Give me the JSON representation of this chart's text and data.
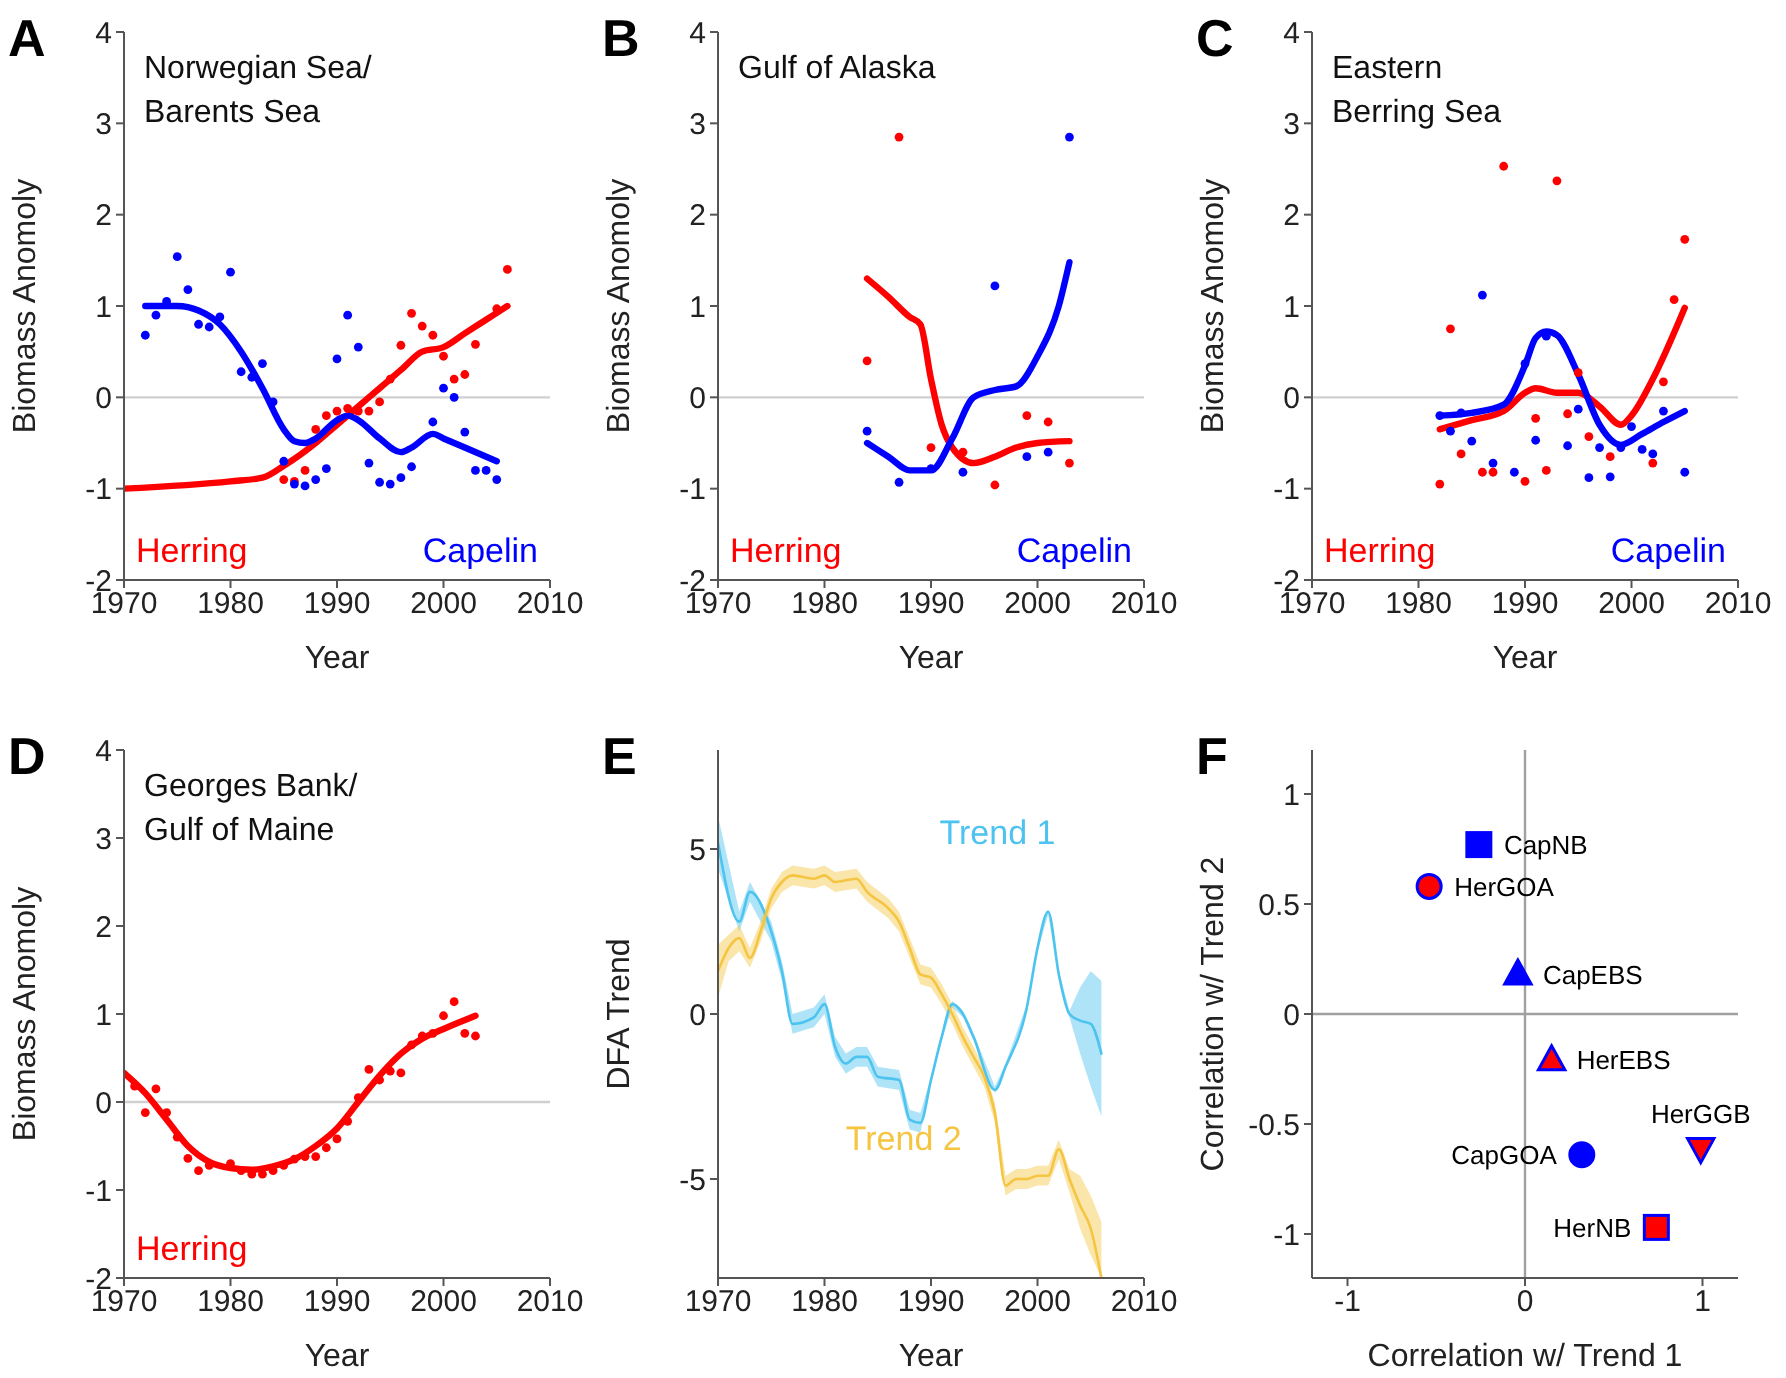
{
  "chart_data": [
    {
      "type": "line",
      "title": "A",
      "subtitle": "Norwegian Sea/\nBarents Sea",
      "xlabel": "Year",
      "ylabel": "Biomass Anomoly",
      "xlim": [
        1970,
        2010
      ],
      "xticks": [
        1970,
        1980,
        1990,
        2000,
        2010
      ],
      "ylim": [
        -2,
        4
      ],
      "yticks": [
        -2,
        -1,
        0,
        1,
        2,
        3,
        4
      ],
      "ref_lines": [
        {
          "axis": "y",
          "value": 0,
          "color": "#d0d0d0"
        }
      ],
      "series": [
        {
          "type": "scatter",
          "marker": "circle",
          "color": "#ff0000",
          "x": [
            1985,
            1986,
            1987,
            1988,
            1989,
            1990,
            1991,
            1992,
            1993,
            1994,
            1995,
            1996,
            1997,
            1998,
            1999,
            2000,
            2001,
            2002,
            2003,
            2005,
            2006
          ],
          "values": [
            -0.9,
            -0.92,
            -0.8,
            -0.35,
            -0.2,
            -0.15,
            -0.12,
            -0.15,
            -0.15,
            -0.05,
            0.2,
            0.57,
            0.92,
            0.78,
            0.68,
            0.45,
            0.2,
            0.25,
            0.58,
            0.97,
            1.4
          ]
        },
        {
          "type": "line",
          "name": "Herring",
          "color": "#ff0000",
          "x": [
            1970,
            1980,
            1983,
            1985,
            1988,
            1990,
            1992,
            1994,
            1996,
            1998,
            2000,
            2002,
            2004,
            2006
          ],
          "values": [
            -1.0,
            -0.92,
            -0.88,
            -0.75,
            -0.5,
            -0.3,
            -0.1,
            0.1,
            0.3,
            0.5,
            0.55,
            0.7,
            0.85,
            1.0
          ]
        },
        {
          "type": "scatter",
          "marker": "circle",
          "color": "#0000ff",
          "x": [
            1972,
            1973,
            1974,
            1975,
            1976,
            1977,
            1978,
            1979,
            1980,
            1981,
            1982,
            1983,
            1984,
            1985,
            1986,
            1987,
            1988,
            1989,
            1990,
            1991,
            1992,
            1993,
            1994,
            1995,
            1996,
            1997,
            1999,
            2000,
            2001,
            2002,
            2003,
            2004,
            2005
          ],
          "values": [
            0.68,
            0.9,
            1.05,
            1.54,
            1.18,
            0.8,
            0.77,
            0.88,
            1.37,
            0.28,
            0.22,
            0.37,
            -0.05,
            -0.7,
            -0.95,
            -0.97,
            -0.9,
            -0.78,
            0.42,
            0.9,
            0.55,
            -0.72,
            -0.93,
            -0.95,
            -0.88,
            -0.76,
            -0.27,
            0.1,
            0,
            -0.38,
            -0.8,
            -0.8,
            -0.9
          ]
        },
        {
          "type": "line",
          "name": "Capelin",
          "color": "#0000ff",
          "x": [
            1972,
            1975,
            1977,
            1979,
            1981,
            1983,
            1985,
            1986,
            1987,
            1988,
            1990,
            1991,
            1992,
            1994,
            1996,
            1997,
            1999,
            2000,
            2002,
            2005
          ],
          "values": [
            1.0,
            1.0,
            0.95,
            0.8,
            0.5,
            0.1,
            -0.35,
            -0.48,
            -0.5,
            -0.45,
            -0.25,
            -0.2,
            -0.25,
            -0.45,
            -0.6,
            -0.55,
            -0.4,
            -0.45,
            -0.55,
            -0.7
          ]
        }
      ]
    },
    {
      "type": "line",
      "title": "B",
      "subtitle": "Gulf of Alaska",
      "xlabel": "Year",
      "ylabel": "Biomass Anomoly",
      "xlim": [
        1970,
        2010
      ],
      "xticks": [
        1970,
        1980,
        1990,
        2000,
        2010
      ],
      "ylim": [
        -2,
        4
      ],
      "yticks": [
        -2,
        -1,
        0,
        1,
        2,
        3,
        4
      ],
      "ref_lines": [
        {
          "axis": "y",
          "value": 0,
          "color": "#d0d0d0"
        }
      ],
      "series": [
        {
          "type": "scatter",
          "marker": "circle",
          "color": "#ff0000",
          "x": [
            1984,
            1987,
            1990,
            1993,
            1996,
            1999,
            2001,
            2003
          ],
          "values": [
            0.4,
            2.85,
            -0.55,
            -0.6,
            -0.96,
            -0.2,
            -0.27,
            -0.72
          ]
        },
        {
          "type": "line",
          "name": "Herring",
          "color": "#ff0000",
          "x": [
            1984,
            1986,
            1988,
            1989,
            1990,
            1991,
            1992,
            1994,
            1996,
            1998,
            2000,
            2003
          ],
          "values": [
            1.3,
            1.1,
            0.88,
            0.8,
            0.2,
            -0.3,
            -0.55,
            -0.72,
            -0.65,
            -0.55,
            -0.5,
            -0.48
          ]
        },
        {
          "type": "scatter",
          "marker": "circle",
          "color": "#0000ff",
          "x": [
            1984,
            1987,
            1990,
            1993,
            1996,
            1999,
            2001,
            2003
          ],
          "values": [
            -0.37,
            -0.93,
            -0.78,
            -0.82,
            1.22,
            -0.65,
            -0.6,
            2.85
          ]
        },
        {
          "type": "line",
          "name": "Capelin",
          "color": "#0000ff",
          "x": [
            1984,
            1986,
            1988,
            1990,
            1992,
            1994,
            1996,
            1998,
            2000,
            2002,
            2003
          ],
          "values": [
            -0.5,
            -0.65,
            -0.8,
            -0.8,
            -0.45,
            0.0,
            0.08,
            0.12,
            0.45,
            1.0,
            1.48
          ]
        }
      ]
    },
    {
      "type": "line",
      "title": "C",
      "subtitle": "Eastern\nBerring Sea",
      "xlabel": "Year",
      "ylabel": "Biomass Anomoly",
      "xlim": [
        1970,
        2010
      ],
      "xticks": [
        1970,
        1980,
        1990,
        2000,
        2010
      ],
      "ylim": [
        -2,
        4
      ],
      "yticks": [
        -2,
        -1,
        0,
        1,
        2,
        3,
        4
      ],
      "ref_lines": [
        {
          "axis": "y",
          "value": 0,
          "color": "#d0d0d0"
        }
      ],
      "series": [
        {
          "type": "scatter",
          "marker": "circle",
          "color": "#ff0000",
          "x": [
            1982,
            1983,
            1984,
            1986,
            1987,
            1988,
            1990,
            1991,
            1992,
            1993,
            1994,
            1995,
            1996,
            1998,
            2002,
            2003,
            2004,
            2005
          ],
          "values": [
            -0.95,
            0.75,
            -0.62,
            -0.82,
            -0.82,
            2.53,
            -0.92,
            -0.23,
            -0.8,
            2.37,
            -0.18,
            0.27,
            -0.43,
            -0.65,
            -0.72,
            0.17,
            1.07,
            1.73
          ]
        },
        {
          "type": "line",
          "name": "Herring",
          "color": "#ff0000",
          "x": [
            1982,
            1985,
            1988,
            1990,
            1991,
            1993,
            1995,
            1997,
            1999,
            2000,
            2002,
            2005
          ],
          "values": [
            -0.35,
            -0.25,
            -0.15,
            0.05,
            0.1,
            0.05,
            0.05,
            -0.1,
            -0.3,
            -0.2,
            0.2,
            0.98
          ]
        },
        {
          "type": "scatter",
          "marker": "circle",
          "color": "#0000ff",
          "x": [
            1982,
            1983,
            1984,
            1985,
            1986,
            1987,
            1989,
            1990,
            1991,
            1992,
            1994,
            1995,
            1996,
            1997,
            1998,
            1999,
            2000,
            2001,
            2002,
            2003,
            2005
          ],
          "values": [
            -0.2,
            -0.37,
            -0.17,
            -0.48,
            1.12,
            -0.72,
            -0.82,
            0.37,
            -0.47,
            0.67,
            -0.53,
            -0.13,
            -0.88,
            -0.55,
            -0.87,
            -0.55,
            -0.32,
            -0.57,
            -0.62,
            -0.15,
            -0.82
          ]
        },
        {
          "type": "line",
          "name": "Capelin",
          "color": "#0000ff",
          "x": [
            1982,
            1985,
            1988,
            1990,
            1991,
            1992,
            1993,
            1995,
            1997,
            1999,
            2001,
            2003,
            2005
          ],
          "values": [
            -0.2,
            -0.17,
            -0.08,
            0.35,
            0.65,
            0.72,
            0.68,
            0.25,
            -0.3,
            -0.52,
            -0.4,
            -0.27,
            -0.15
          ]
        }
      ]
    },
    {
      "type": "line",
      "title": "D",
      "subtitle": "Georges Bank/\nGulf of Maine",
      "xlabel": "Year",
      "ylabel": "Biomass Anomoly",
      "xlim": [
        1970,
        2010
      ],
      "xticks": [
        1970,
        1980,
        1990,
        2000,
        2010
      ],
      "ylim": [
        -2,
        4
      ],
      "yticks": [
        -2,
        -1,
        0,
        1,
        2,
        3,
        4
      ],
      "ref_lines": [
        {
          "axis": "y",
          "value": 0,
          "color": "#d0d0d0"
        }
      ],
      "series": [
        {
          "type": "scatter",
          "marker": "circle",
          "color": "#ff0000",
          "x": [
            1971,
            1972,
            1973,
            1974,
            1975,
            1976,
            1977,
            1978,
            1980,
            1981,
            1982,
            1983,
            1984,
            1985,
            1986,
            1987,
            1988,
            1989,
            1990,
            1991,
            1992,
            1993,
            1994,
            1995,
            1996,
            1997,
            1998,
            1999,
            2000,
            2001,
            2002,
            2003
          ],
          "values": [
            0.18,
            -0.12,
            0.15,
            -0.12,
            -0.4,
            -0.64,
            -0.78,
            -0.72,
            -0.7,
            -0.78,
            -0.82,
            -0.82,
            -0.78,
            -0.72,
            -0.65,
            -0.62,
            -0.62,
            -0.52,
            -0.42,
            -0.22,
            0.05,
            0.37,
            0.25,
            0.35,
            0.33,
            0.65,
            0.75,
            0.78,
            0.98,
            1.14,
            0.78,
            0.75
          ]
        },
        {
          "type": "line",
          "name": "Herring",
          "color": "#ff0000",
          "x": [
            1970,
            1972,
            1974,
            1976,
            1978,
            1980,
            1982,
            1984,
            1986,
            1988,
            1990,
            1992,
            1994,
            1996,
            1998,
            2000,
            2003
          ],
          "values": [
            0.33,
            0.1,
            -0.2,
            -0.5,
            -0.68,
            -0.75,
            -0.77,
            -0.73,
            -0.65,
            -0.5,
            -0.3,
            0.0,
            0.3,
            0.55,
            0.72,
            0.83,
            0.98
          ]
        }
      ]
    },
    {
      "type": "line",
      "title": "E",
      "xlabel": "Year",
      "ylabel": "DFA Trend",
      "xlim": [
        1970,
        2010
      ],
      "xticks": [
        1970,
        1980,
        1990,
        2000,
        2010
      ],
      "ylim": [
        -8,
        8
      ],
      "yticks": [
        -5,
        0,
        5
      ],
      "series": [
        {
          "type": "line",
          "name": "Trend 1",
          "color": "#4dc3f0",
          "x": [
            1970,
            1972,
            1973,
            1975,
            1976,
            1977,
            1979,
            1980,
            1981,
            1982,
            1983,
            1984,
            1985,
            1987,
            1988,
            1989,
            1990,
            1991,
            1992,
            1993,
            1994,
            1996,
            1997,
            1999,
            2000,
            2001,
            2002,
            2003,
            2004,
            2005,
            2006
          ],
          "values": [
            5.2,
            2.8,
            3.7,
            2.5,
            1.3,
            -0.3,
            -0.1,
            0.3,
            -1.0,
            -1.5,
            -1.3,
            -1.3,
            -1.9,
            -2.0,
            -3.2,
            -3.3,
            -2.0,
            -0.7,
            0.3,
            0.0,
            -0.7,
            -2.3,
            -1.6,
            0.2,
            2.0,
            3.1,
            1.2,
            0.0,
            -0.2,
            -0.3,
            -1.2
          ],
          "lower": [
            4.4,
            2.5,
            3.4,
            2.2,
            1.0,
            -0.6,
            -0.4,
            0.0,
            -1.3,
            -1.8,
            -1.6,
            -1.6,
            -2.2,
            -2.3,
            -3.5,
            -3.6,
            -2.1,
            -0.8,
            0.2,
            -0.1,
            -0.8,
            -2.4,
            -1.7,
            0.1,
            1.9,
            3.0,
            1.1,
            -0.1,
            -1.2,
            -2.2,
            -3.1
          ],
          "upper": [
            6.0,
            3.1,
            4.0,
            2.8,
            1.6,
            0.0,
            0.2,
            0.6,
            -0.7,
            -1.2,
            -1.0,
            -1.0,
            -1.6,
            -1.7,
            -2.9,
            -3.0,
            -1.9,
            -0.6,
            0.4,
            0.1,
            -0.6,
            -2.2,
            -1.5,
            0.3,
            2.1,
            3.2,
            1.3,
            0.1,
            0.8,
            1.3,
            1.0
          ]
        },
        {
          "type": "line",
          "name": "Trend 2",
          "color": "#f5c542",
          "x": [
            1970,
            1971,
            1972,
            1973,
            1974,
            1975,
            1976,
            1977,
            1979,
            1980,
            1981,
            1983,
            1984,
            1986,
            1987,
            1988,
            1989,
            1990,
            1991,
            1992,
            1993,
            1994,
            1995,
            1996,
            1997,
            1998,
            1999,
            2000,
            2001,
            2002,
            2003,
            2004,
            2005,
            2006
          ],
          "values": [
            1.3,
            2.0,
            2.3,
            1.7,
            2.5,
            3.5,
            4.0,
            4.2,
            4.1,
            4.2,
            4.0,
            4.1,
            3.7,
            3.2,
            2.8,
            2.0,
            1.2,
            1.1,
            0.6,
            0.0,
            -0.7,
            -1.3,
            -1.9,
            -3.0,
            -5.2,
            -5.0,
            -5.0,
            -4.9,
            -4.9,
            -4.1,
            -5.0,
            -5.8,
            -6.5,
            -8.0
          ],
          "lower": [
            0.5,
            1.6,
            1.9,
            1.4,
            2.2,
            3.2,
            3.7,
            3.9,
            3.8,
            3.9,
            3.7,
            3.8,
            3.4,
            2.9,
            2.5,
            1.7,
            0.9,
            0.8,
            0.3,
            -0.3,
            -1.0,
            -1.6,
            -2.2,
            -3.3,
            -5.5,
            -5.3,
            -5.3,
            -5.2,
            -5.2,
            -4.4,
            -5.4,
            -6.5,
            -7.3,
            -8.0
          ],
          "upper": [
            2.1,
            2.4,
            2.7,
            2.0,
            2.8,
            3.8,
            4.3,
            4.5,
            4.4,
            4.5,
            4.3,
            4.4,
            4.0,
            3.5,
            3.1,
            2.3,
            1.5,
            1.4,
            0.9,
            0.3,
            -0.4,
            -1.0,
            -1.6,
            -2.7,
            -4.9,
            -4.7,
            -4.7,
            -4.6,
            -4.6,
            -3.8,
            -4.7,
            -4.9,
            -5.5,
            -6.3
          ]
        }
      ]
    },
    {
      "type": "scatter",
      "title": "F",
      "xlabel": "Correlation w/ Trend 1",
      "ylabel": "Correlation w/ Trend 2",
      "xlim": [
        -1.2,
        1.2
      ],
      "xticks": [
        -1,
        0,
        1
      ],
      "ylim": [
        -1.2,
        1.2
      ],
      "yticks": [
        -1,
        -0.5,
        0,
        0.5,
        1
      ],
      "ref_lines": [
        {
          "axis": "x",
          "value": 0,
          "color": "#a0a0a0"
        },
        {
          "axis": "y",
          "value": 0,
          "color": "#a0a0a0"
        }
      ],
      "series": [
        {
          "name": "CapNB",
          "marker": "square",
          "color": "#0000ff",
          "x": [
            -0.26
          ],
          "values": [
            0.77
          ]
        },
        {
          "name": "HerGOA",
          "marker": "circle",
          "color": "#ff0000",
          "x": [
            -0.54
          ],
          "values": [
            0.58
          ]
        },
        {
          "name": "CapEBS",
          "marker": "triangle",
          "color": "#0000ff",
          "x": [
            -0.04
          ],
          "values": [
            0.18
          ]
        },
        {
          "name": "HerEBS",
          "marker": "triangle",
          "color": "#ff0000",
          "x": [
            0.15
          ],
          "values": [
            -0.21
          ]
        },
        {
          "name": "CapGOA",
          "marker": "circle",
          "color": "#0000ff",
          "x": [
            0.32
          ],
          "values": [
            -0.64
          ]
        },
        {
          "name": "HerGGB",
          "marker": "triangle-down",
          "color": "#ff0000",
          "x": [
            0.99
          ],
          "values": [
            -0.61
          ]
        },
        {
          "name": "HerNB",
          "marker": "square",
          "color": "#ff0000",
          "x": [
            0.74
          ],
          "values": [
            -0.97
          ]
        }
      ]
    }
  ]
}
